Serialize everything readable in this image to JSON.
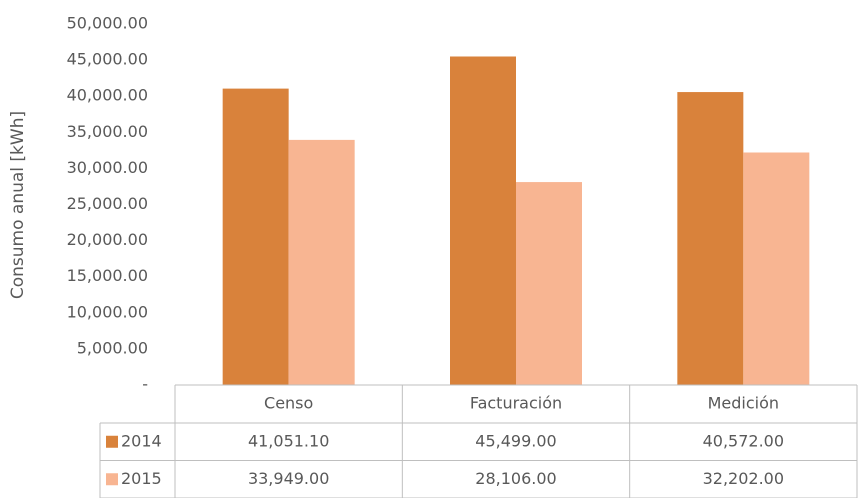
{
  "chart_data": {
    "type": "bar",
    "y_label": "Consumo anual [kWh]",
    "categories": [
      "Censo",
      "Facturación",
      "Medición"
    ],
    "series": [
      {
        "name": "2014",
        "color": "#d9823b",
        "values": [
          41051.1,
          45499,
          40572
        ],
        "value_labels": [
          "41,051.10",
          "45,499.00",
          "40,572.00"
        ]
      },
      {
        "name": "2015",
        "color": "#f8b592",
        "values": [
          33949,
          28106,
          32202
        ],
        "value_labels": [
          "33,949.00",
          "28,106.00",
          "32,202.00"
        ]
      }
    ],
    "ylim": [
      0,
      50000
    ],
    "yticks": [
      {
        "value": 0,
        "label": "-"
      },
      {
        "value": 5000,
        "label": "5,000.00"
      },
      {
        "value": 10000,
        "label": "10,000.00"
      },
      {
        "value": 15000,
        "label": "15,000.00"
      },
      {
        "value": 20000,
        "label": "20,000.00"
      },
      {
        "value": 25000,
        "label": "25,000.00"
      },
      {
        "value": 30000,
        "label": "30,000.00"
      },
      {
        "value": 35000,
        "label": "35,000.00"
      },
      {
        "value": 40000,
        "label": "40,000.00"
      },
      {
        "value": 45000,
        "label": "45,000.00"
      },
      {
        "value": 50000,
        "label": "50,000.00"
      }
    ],
    "data_table": true
  }
}
